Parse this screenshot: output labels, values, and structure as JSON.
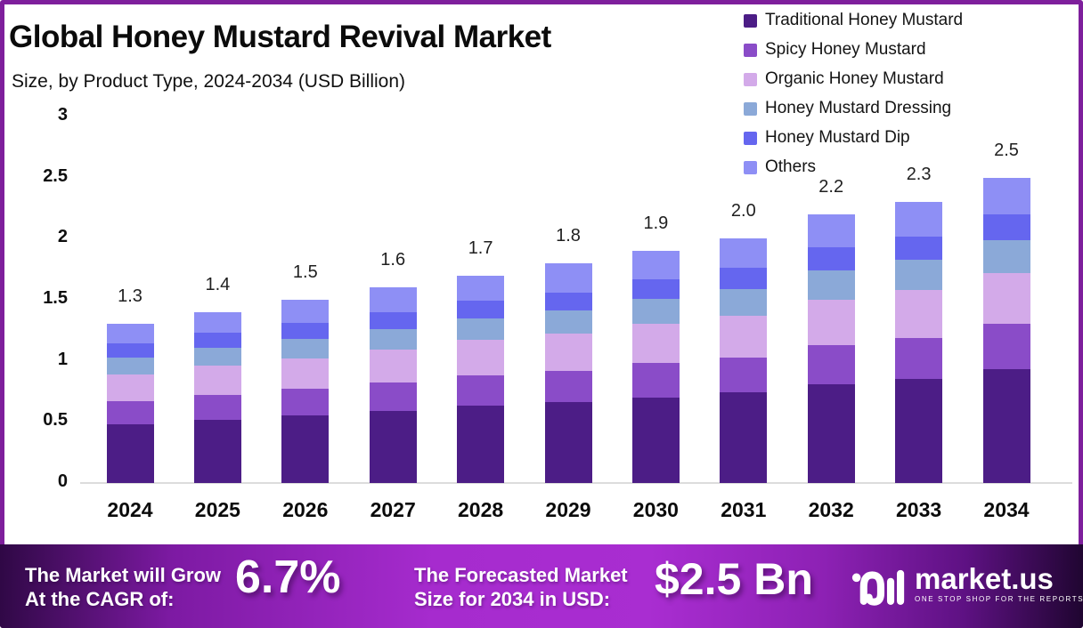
{
  "frame": {
    "border_color": "#7e1f9c",
    "background": "#ffffff"
  },
  "header": {
    "title": "Global Honey Mustard Revival Market",
    "subtitle": "Size, by Product Type, 2024-2034 (USD Billion)"
  },
  "chart_data": {
    "type": "bar",
    "stacked": true,
    "title": "Global Honey Mustard Revival Market Size, by Product Type, 2024-2034 (USD Billion)",
    "xlabel": "",
    "ylabel": "",
    "categories": [
      "2024",
      "2025",
      "2026",
      "2027",
      "2028",
      "2029",
      "2030",
      "2031",
      "2032",
      "2033",
      "2034"
    ],
    "totals": [
      "1.3",
      "1.4",
      "1.5",
      "1.6",
      "1.7",
      "1.8",
      "1.9",
      "2.0",
      "2.2",
      "2.3",
      "2.5"
    ],
    "series": [
      {
        "name": "Traditional Honey Mustard",
        "color": "#4C1D86",
        "values": [
          0.48,
          0.52,
          0.55,
          0.59,
          0.63,
          0.66,
          0.7,
          0.74,
          0.81,
          0.85,
          0.93
        ]
      },
      {
        "name": "Spicy Honey Mustard",
        "color": "#8A4CC8",
        "values": [
          0.19,
          0.2,
          0.22,
          0.23,
          0.25,
          0.26,
          0.28,
          0.29,
          0.32,
          0.34,
          0.37
        ]
      },
      {
        "name": "Organic Honey Mustard",
        "color": "#D3AAE9",
        "values": [
          0.22,
          0.24,
          0.25,
          0.27,
          0.29,
          0.3,
          0.32,
          0.34,
          0.37,
          0.39,
          0.42
        ]
      },
      {
        "name": "Honey Mustard Dressing",
        "color": "#8BA9D8",
        "values": [
          0.14,
          0.15,
          0.16,
          0.17,
          0.18,
          0.19,
          0.21,
          0.22,
          0.24,
          0.25,
          0.27
        ]
      },
      {
        "name": "Honey Mustard Dip",
        "color": "#6566EF",
        "values": [
          0.11,
          0.12,
          0.13,
          0.14,
          0.14,
          0.15,
          0.16,
          0.17,
          0.19,
          0.19,
          0.21
        ]
      },
      {
        "name": "Others",
        "color": "#8E8FF5",
        "values": [
          0.16,
          0.17,
          0.19,
          0.2,
          0.21,
          0.24,
          0.23,
          0.24,
          0.27,
          0.28,
          0.3
        ]
      }
    ],
    "ylim": [
      0,
      3
    ],
    "yticks": [
      "0",
      "0.5",
      "1",
      "1.5",
      "2",
      "2.5",
      "3"
    ],
    "grid": false,
    "legend_position": "top-right"
  },
  "footer": {
    "cagr_label_line1": "The Market will Grow",
    "cagr_label_line2": "At the CAGR of:",
    "cagr_value": "6.7%",
    "forecast_label_line1": "The Forecasted Market",
    "forecast_label_line2": "Size for 2034 in USD:",
    "forecast_value": "$2.5 Bn",
    "brand": {
      "name": "market.us",
      "tagline": "ONE STOP SHOP FOR THE REPORTS",
      "logo_icon": "market-us-monogram-icon"
    }
  }
}
